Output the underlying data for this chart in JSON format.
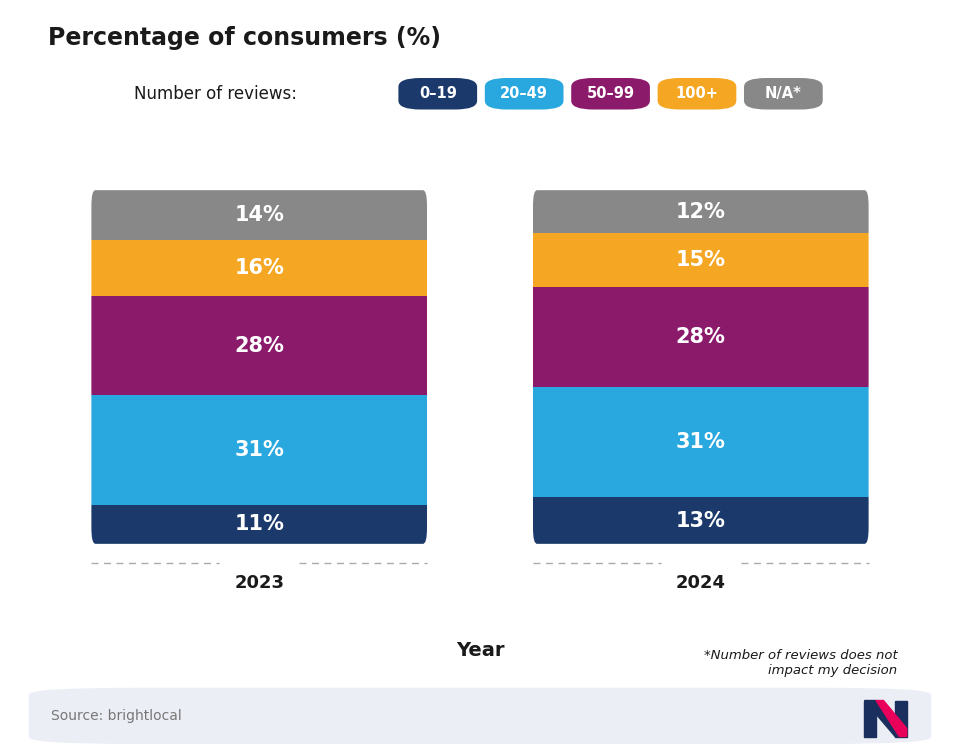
{
  "title": "Percentage of consumers (%)",
  "xlabel": "Year",
  "legend_title": "Number of reviews:",
  "categories": [
    "2023",
    "2024"
  ],
  "legend_labels": [
    "0–19",
    "20–49",
    "50–99",
    "100+",
    "N/A*"
  ],
  "values_2023": [
    11,
    31,
    28,
    16,
    14
  ],
  "values_2024": [
    13,
    31,
    28,
    15,
    12
  ],
  "colors": [
    "#1B3A6B",
    "#29A8E0",
    "#8B1A6B",
    "#F5A623",
    "#888888"
  ],
  "background_color": "#ffffff",
  "footer_bg_color": "#ECEEF5",
  "source_text": "Source: brightlocal",
  "footnote": "*Number of reviews does not\nimpact my decision",
  "title_underline_color": "#E8005A",
  "text_color_white": "#ffffff",
  "text_color_dark": "#1a1a1a",
  "bar_rounding": 0.05
}
